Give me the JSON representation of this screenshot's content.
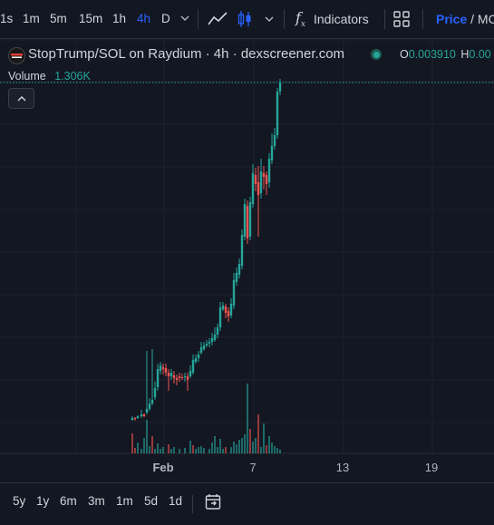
{
  "toolbar": {
    "timeframes": [
      "1s",
      "1m",
      "5m",
      "15m",
      "1h",
      "4h",
      "D"
    ],
    "active_timeframe": "4h",
    "indicators_label": "Indicators",
    "price_label": "Price",
    "price_mc_sep": "/",
    "mc_label": "MC"
  },
  "legend": {
    "symbol": "StopTrump/SOL on Raydium · 4h · dexscreener.com",
    "open_label": "O",
    "open_value": "0.003910",
    "high_label": "H",
    "high_value": "0.00"
  },
  "volume": {
    "label": "Volume",
    "value": "1.306K"
  },
  "chart_data": {
    "type": "candlestick",
    "xaxis_ticks": [
      "Feb",
      "7",
      "13",
      "19"
    ],
    "up_color": "#26a69a",
    "down_color": "#ef5350",
    "grid": true
  },
  "bottombar": {
    "ranges": [
      "5y",
      "1y",
      "6m",
      "3m",
      "1m",
      "5d",
      "1d"
    ]
  },
  "colors": {
    "background": "#131722",
    "accent": "#2962ff",
    "up": "#26a69a",
    "down": "#ef5350"
  }
}
